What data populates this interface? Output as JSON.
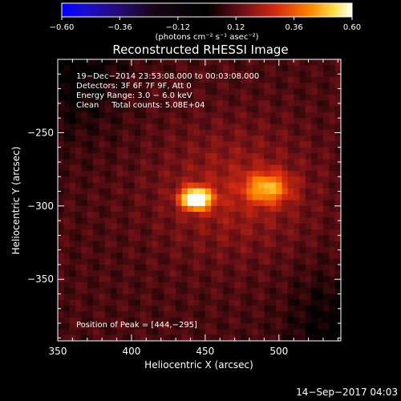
{
  "chart_data": {
    "type": "heatmap",
    "title": "Reconstructed RHESSI Image",
    "xlabel": "Heliocentric X (arcsec)",
    "ylabel": "Heliocentric Y (arcsec)",
    "xlim": [
      350,
      542
    ],
    "ylim": [
      -392,
      -200
    ],
    "x_ticks": [
      350,
      400,
      450,
      500
    ],
    "y_ticks": [
      -250,
      -300,
      -350
    ],
    "x_tick_labels": [
      "350",
      "400",
      "450",
      "500"
    ],
    "y_tick_labels": [
      "−250",
      "−300",
      "−350"
    ],
    "colorbar": {
      "range": [
        -0.6,
        0.6
      ],
      "tick_values": [
        -0.6,
        -0.36,
        -0.12,
        0.12,
        0.36,
        0.6
      ],
      "tick_labels": [
        "−0.60",
        "−0.36",
        "−0.12",
        "0.12",
        "0.36",
        "0.60"
      ],
      "unit_label": "(photons cm⁻² s⁻¹ asec⁻²)",
      "colormap": "RHESSI rainbow/heat"
    },
    "sources": [
      {
        "x": 444,
        "y": -295,
        "peak": 0.6,
        "sx": 7,
        "sy": 5
      },
      {
        "x": 492,
        "y": -288,
        "peak": 0.3,
        "sx": 10,
        "sy": 7
      }
    ],
    "background_level": 0.08,
    "info_lines": [
      "19−Dec−2014 23:53:08.000 to 00:03:08.000",
      "Detectors: 3F 6F 7F 9F, Att 0",
      "Energy Range: 3.0 − 6.0 keV",
      "Clean     Total counts: 5.08E+04"
    ],
    "peak_label": "Position of Peak = [444,−295]"
  },
  "footer": {
    "timestamp": "14−Sep−2017 04:03"
  }
}
